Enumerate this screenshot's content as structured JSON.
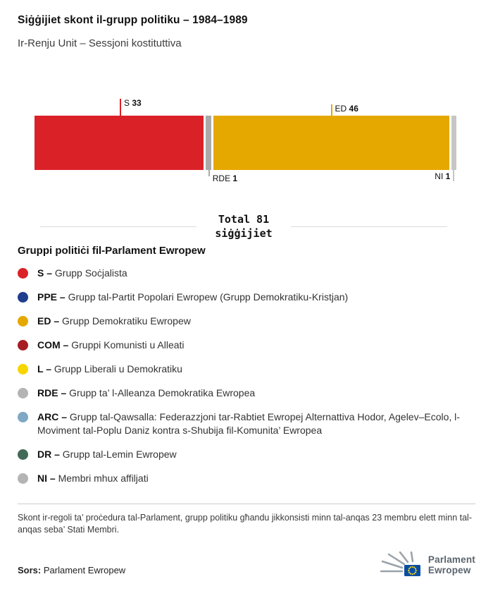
{
  "chart_data": {
    "type": "stacked-bar",
    "orientation": "horizontal",
    "title": "Siġġijiet skont il-grupp politiku – 1984–1989",
    "subtitle": "Ir-Renju Unit – Sessjoni kostituttiva",
    "total": 81,
    "total_label_line1": "Total 81",
    "total_label_line2": "siġġijiet",
    "legend_position": "bottom",
    "segments": [
      {
        "group": "S",
        "value": 33,
        "color": "#db2128",
        "annotation": {
          "side": "above",
          "align": "right",
          "tick_len": 24
        }
      },
      {
        "group": "RDE",
        "value": 1,
        "color": "#a9a9a9",
        "annotation": {
          "side": "below",
          "align": "right",
          "tick_len": 9
        }
      },
      {
        "group": "ED",
        "value": 46,
        "color": "#e5a800",
        "annotation": {
          "side": "above",
          "align": "right",
          "tick_len": 16
        }
      },
      {
        "group": "NI",
        "value": 1,
        "color": "#c6c6c6",
        "annotation": {
          "side": "below",
          "align": "left",
          "tick_len": 16
        }
      }
    ]
  },
  "legend": {
    "title": "Gruppi politiċi fil-Parlament Ewropew",
    "items": [
      {
        "abbr": "S –",
        "label": "Grupp Soċjalista",
        "color": "#db2128"
      },
      {
        "abbr": "PPE –",
        "label": "Grupp tal-Partit Popolari Ewropew (Grupp Demokratiku-Kristjan)",
        "color": "#1f3e8e"
      },
      {
        "abbr": "ED –",
        "label": "Grupp Demokratiku Ewropew",
        "color": "#e5a800"
      },
      {
        "abbr": "COM –",
        "label": "Gruppi Komunisti u Alleati",
        "color": "#a61c22"
      },
      {
        "abbr": "L –",
        "label": "Grupp Liberali u Demokratiku",
        "color": "#f7d500"
      },
      {
        "abbr": "RDE –",
        "label": "Grupp ta’ l-Alleanza Demokratika Ewropea",
        "color": "#b4b4b4"
      },
      {
        "abbr": "ARC –",
        "label": "Grupp tal-Qawsalla: Federazzjoni tar-Rabtiet Ewropej Alternattiva Hodor, Agelev–Ecolo, l-Moviment tal-Poplu Daniz kontra s-Shubija fil-Komunita’ Ewropea",
        "color": "#7ea8c4"
      },
      {
        "abbr": "DR –",
        "label": "Grupp tal-Lemin Ewropew",
        "color": "#426a58"
      },
      {
        "abbr": "NI –",
        "label": "Membri mhux affiljati",
        "color": "#b4b4b4"
      }
    ]
  },
  "footnote": "Skont ir-regoli ta’ proċedura tal-Parlament, grupp politiku għandu jikkonsisti minn tal-anqas 23 membru elett minn tal-anqas seba’ Stati Membri.",
  "footer": {
    "source_label": "Sors:",
    "source_value": "Parlament Ewropew",
    "logo_line1": "Parlament",
    "logo_line2": "Ewropew"
  }
}
